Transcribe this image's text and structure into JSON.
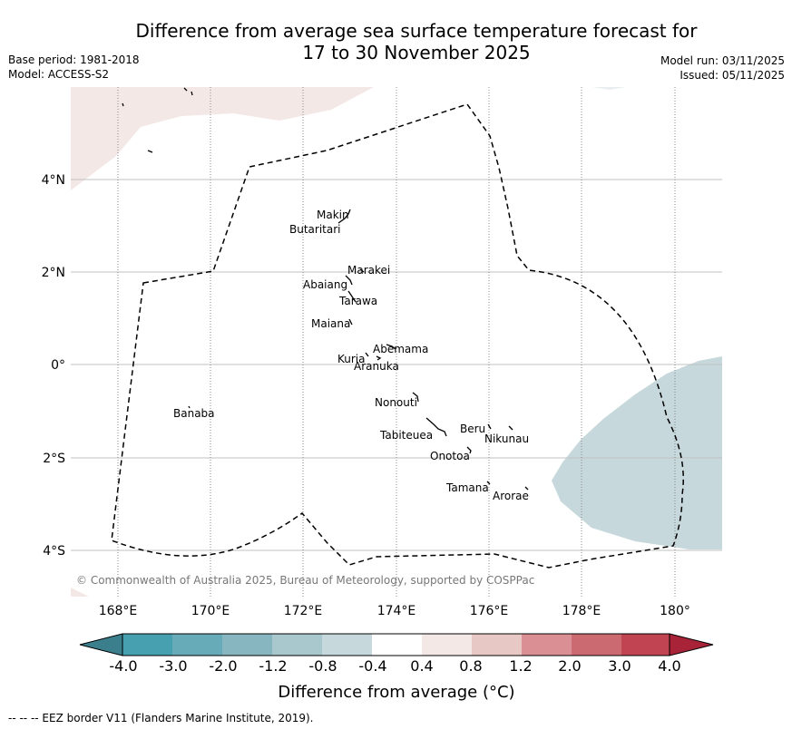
{
  "title": {
    "line1": "Difference from average sea surface temperature forecast for",
    "line2": "17 to 30 November 2025"
  },
  "meta": {
    "base_period": "Base period: 1981-2018",
    "model": "Model: ACCESS-S2",
    "model_run": "Model run: 03/11/2025",
    "issued": "Issued: 05/11/2025"
  },
  "map": {
    "lat_labels": [
      "4°N",
      "2°N",
      "0°",
      "2°S",
      "4°S"
    ],
    "lon_labels": [
      "168°E",
      "170°E",
      "172°E",
      "174°E",
      "176°E",
      "178°E",
      "180°"
    ],
    "places": [
      "Makin",
      "Butaritari",
      "Marakei",
      "Abaiang",
      "Tarawa",
      "Maiana",
      "Abemama",
      "Kuria",
      "Aranuka",
      "Nonouti",
      "Banaba",
      "Beru",
      "Nikunau",
      "Tabiteuea",
      "Onotoa",
      "Tamana",
      "Arorae"
    ],
    "copyright": "© Commonwealth of Australia 2025, Bureau of Meteorology, supported by COSPPac"
  },
  "colorbar": {
    "labels": [
      "-4.0",
      "-3.0",
      "-2.0",
      "-1.2",
      "-0.8",
      "-0.4",
      "0.4",
      "0.8",
      "1.2",
      "2.0",
      "3.0",
      "4.0"
    ],
    "colors": [
      "#3c7f8c",
      "#46a0b0",
      "#68abb8",
      "#88b6c0",
      "#a8c8cd",
      "#c6d8db",
      "#ffffff",
      "#f3e8e6",
      "#e8c8c4",
      "#da8f95",
      "#cc6a72",
      "#c04452",
      "#a82338"
    ],
    "title": "Difference from average (°C)"
  },
  "footnote": "--  --  -- EEZ border V11 (Flanders Marine Institute, 2019)."
}
